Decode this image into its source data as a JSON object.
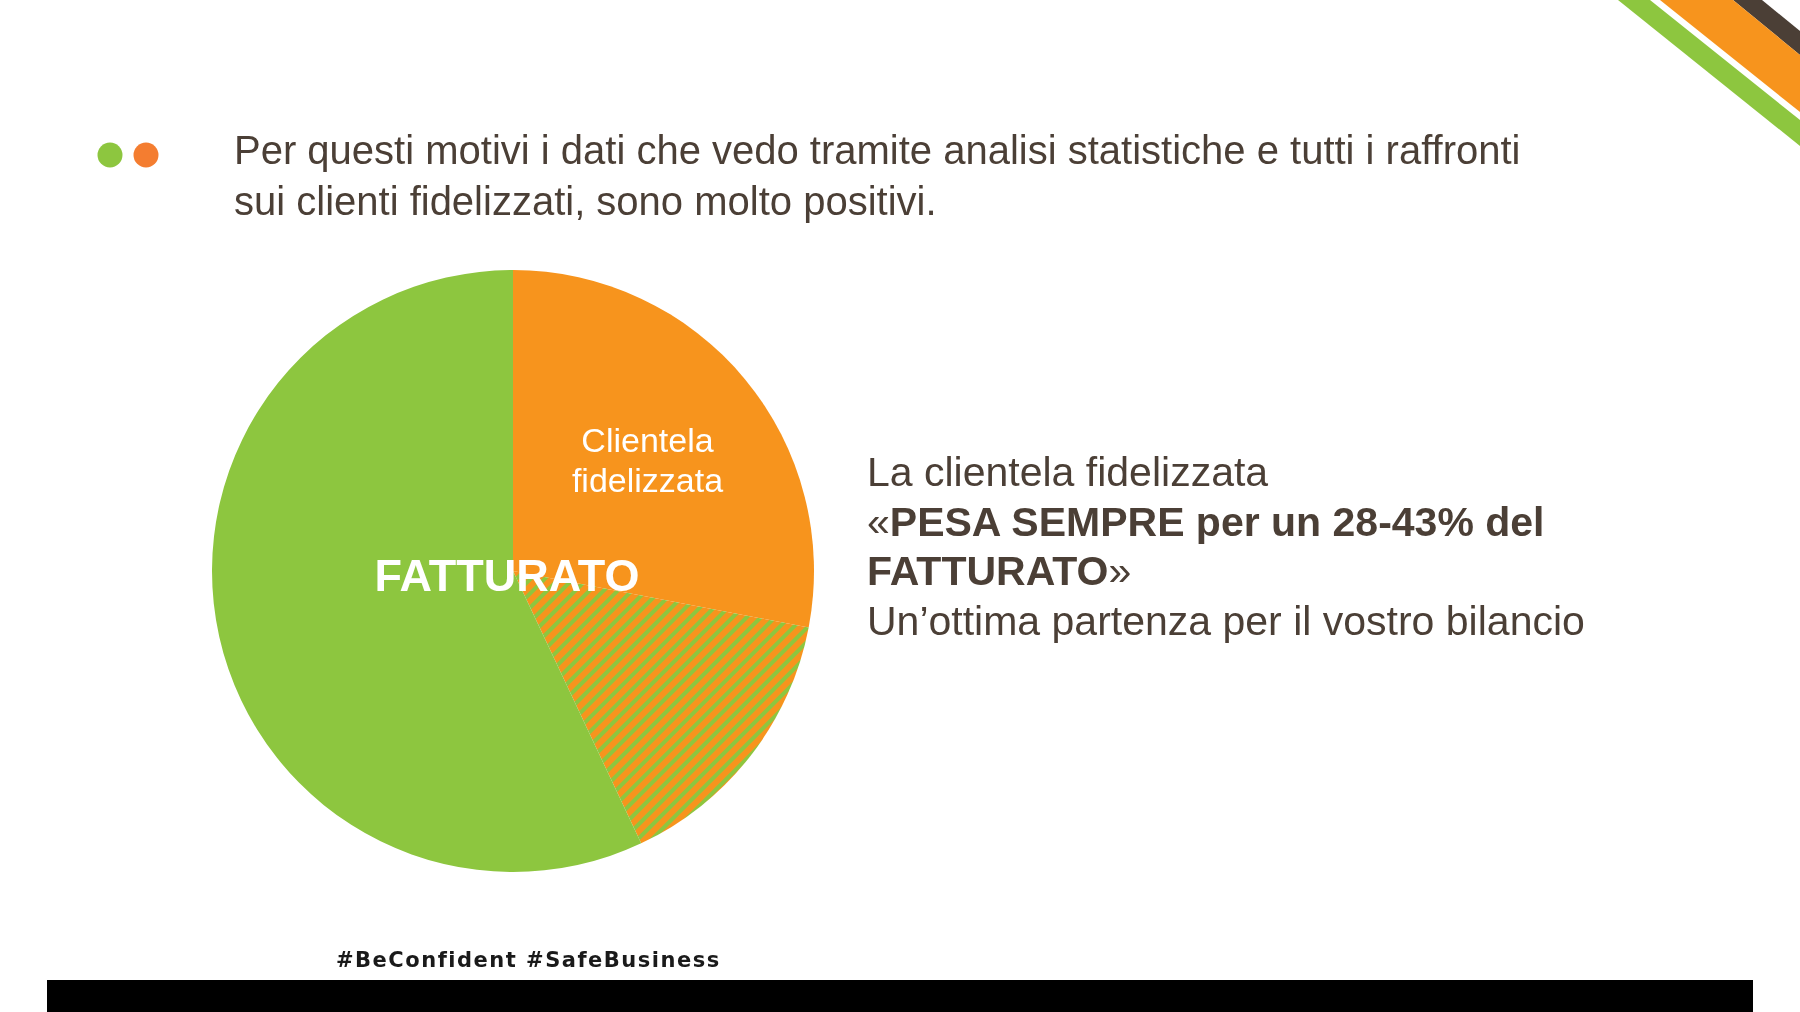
{
  "chart_data": {
    "type": "pie",
    "title": "Per questi motivi i dati che vedo tramite analisi statistiche e tutti i raffronti sui clienti fidelizzati, sono molto positivi.",
    "categories": [
      "Clientela fidelizzata",
      null,
      "FATTURATO"
    ],
    "values": [
      28,
      15,
      57
    ],
    "colors": [
      "#f7941d",
      "#f7941d",
      "#8dc63f"
    ],
    "annotations": [
      "La clientela fidelizzata",
      "«PESA SEMPRE per un 28-43% del FATTURATO»",
      "Un’ottima partenza per il vostro bilancio",
      "#BeConfident #SafeBusiness"
    ]
  }
}
